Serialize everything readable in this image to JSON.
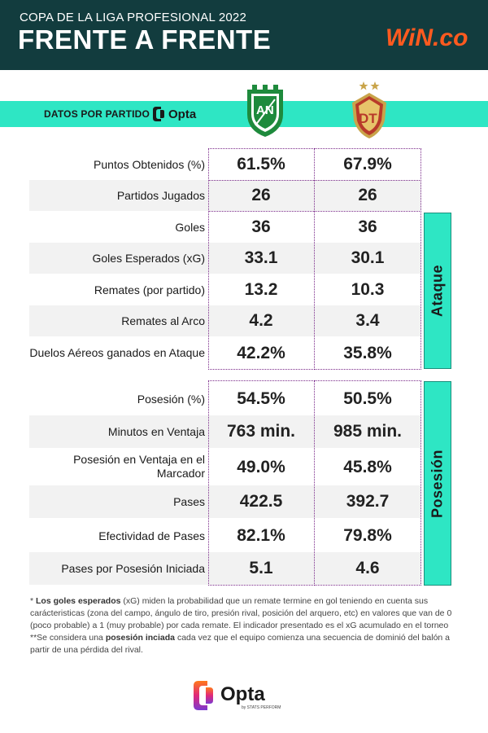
{
  "header": {
    "subtitle": "COPA DE LA LIGA PROFESIONAL 2022",
    "title": "FRENTE A FRENTE",
    "brand": "WiN.co",
    "brand_color": "#ff5a1f"
  },
  "band": {
    "label": "DATOS POR PARTIDO",
    "provider": "Opta",
    "color": "#2ee6c4"
  },
  "teams": [
    {
      "crest": "shield-crest-green-white",
      "initials": "AN",
      "color": "#1e8a3c"
    },
    {
      "crest": "shield-crest-gold-red",
      "initials": "DT",
      "color": "#b83a2a"
    }
  ],
  "sections": [
    {
      "tab": "",
      "rows": [
        {
          "label": "Puntos Obtenidos (%)",
          "v1": "61.5%",
          "v2": "67.9%"
        },
        {
          "label": "Partidos Jugados",
          "v1": "26",
          "v2": "26"
        }
      ]
    },
    {
      "tab": "Ataque",
      "rows": [
        {
          "label": "Goles",
          "v1": "36",
          "v2": "36"
        },
        {
          "label": "Goles Esperados (xG)",
          "v1": "33.1",
          "v2": "30.1"
        },
        {
          "label": "Remates (por partido)",
          "v1": "13.2",
          "v2": "10.3"
        },
        {
          "label": "Remates al Arco",
          "v1": "4.2",
          "v2": "3.4"
        },
        {
          "label": "Duelos Aéreos ganados en Ataque",
          "v1": "42.2%",
          "v2": "35.8%"
        }
      ]
    },
    {
      "tab": "Posesión",
      "rows": [
        {
          "label": "Posesión (%)",
          "v1": "54.5%",
          "v2": "50.5%"
        },
        {
          "label": "Minutos en Ventaja",
          "v1": "763 min.",
          "v2": "985 min."
        },
        {
          "label": "Posesión en Ventaja en el Marcador",
          "v1": "49.0%",
          "v2": "45.8%"
        },
        {
          "label": "Pases",
          "v1": "422.5",
          "v2": "392.7"
        },
        {
          "label": "Efectividad de Pases",
          "v1": "82.1%",
          "v2": "79.8%"
        },
        {
          "label": "Pases por Posesión Iniciada",
          "v1": "5.1",
          "v2": "4.6"
        }
      ]
    }
  ],
  "footnotes": {
    "n1_marker": "* ",
    "n1_bold": "Los goles esperados",
    "n1_text": " (xG) miden la probabilidad que un remate termine en gol teniendo en cuenta sus carácteristicas (zona del campo, ángulo de tiro, presión rival, posición del arquero, etc) en valores que van de 0 (poco probable) a 1 (muy probable) por cada remate. El indicador presentado es el xG acumulado en el torneo",
    "n2_marker": "**Se considera una ",
    "n2_bold": "posesión inciada",
    "n2_text": " cada vez que el equipo comienza una secuencia de dominió del balón a partir de una pérdida del rival."
  },
  "footer": {
    "logo": "Opta",
    "logo_sub": "by STATS PERFORM"
  }
}
